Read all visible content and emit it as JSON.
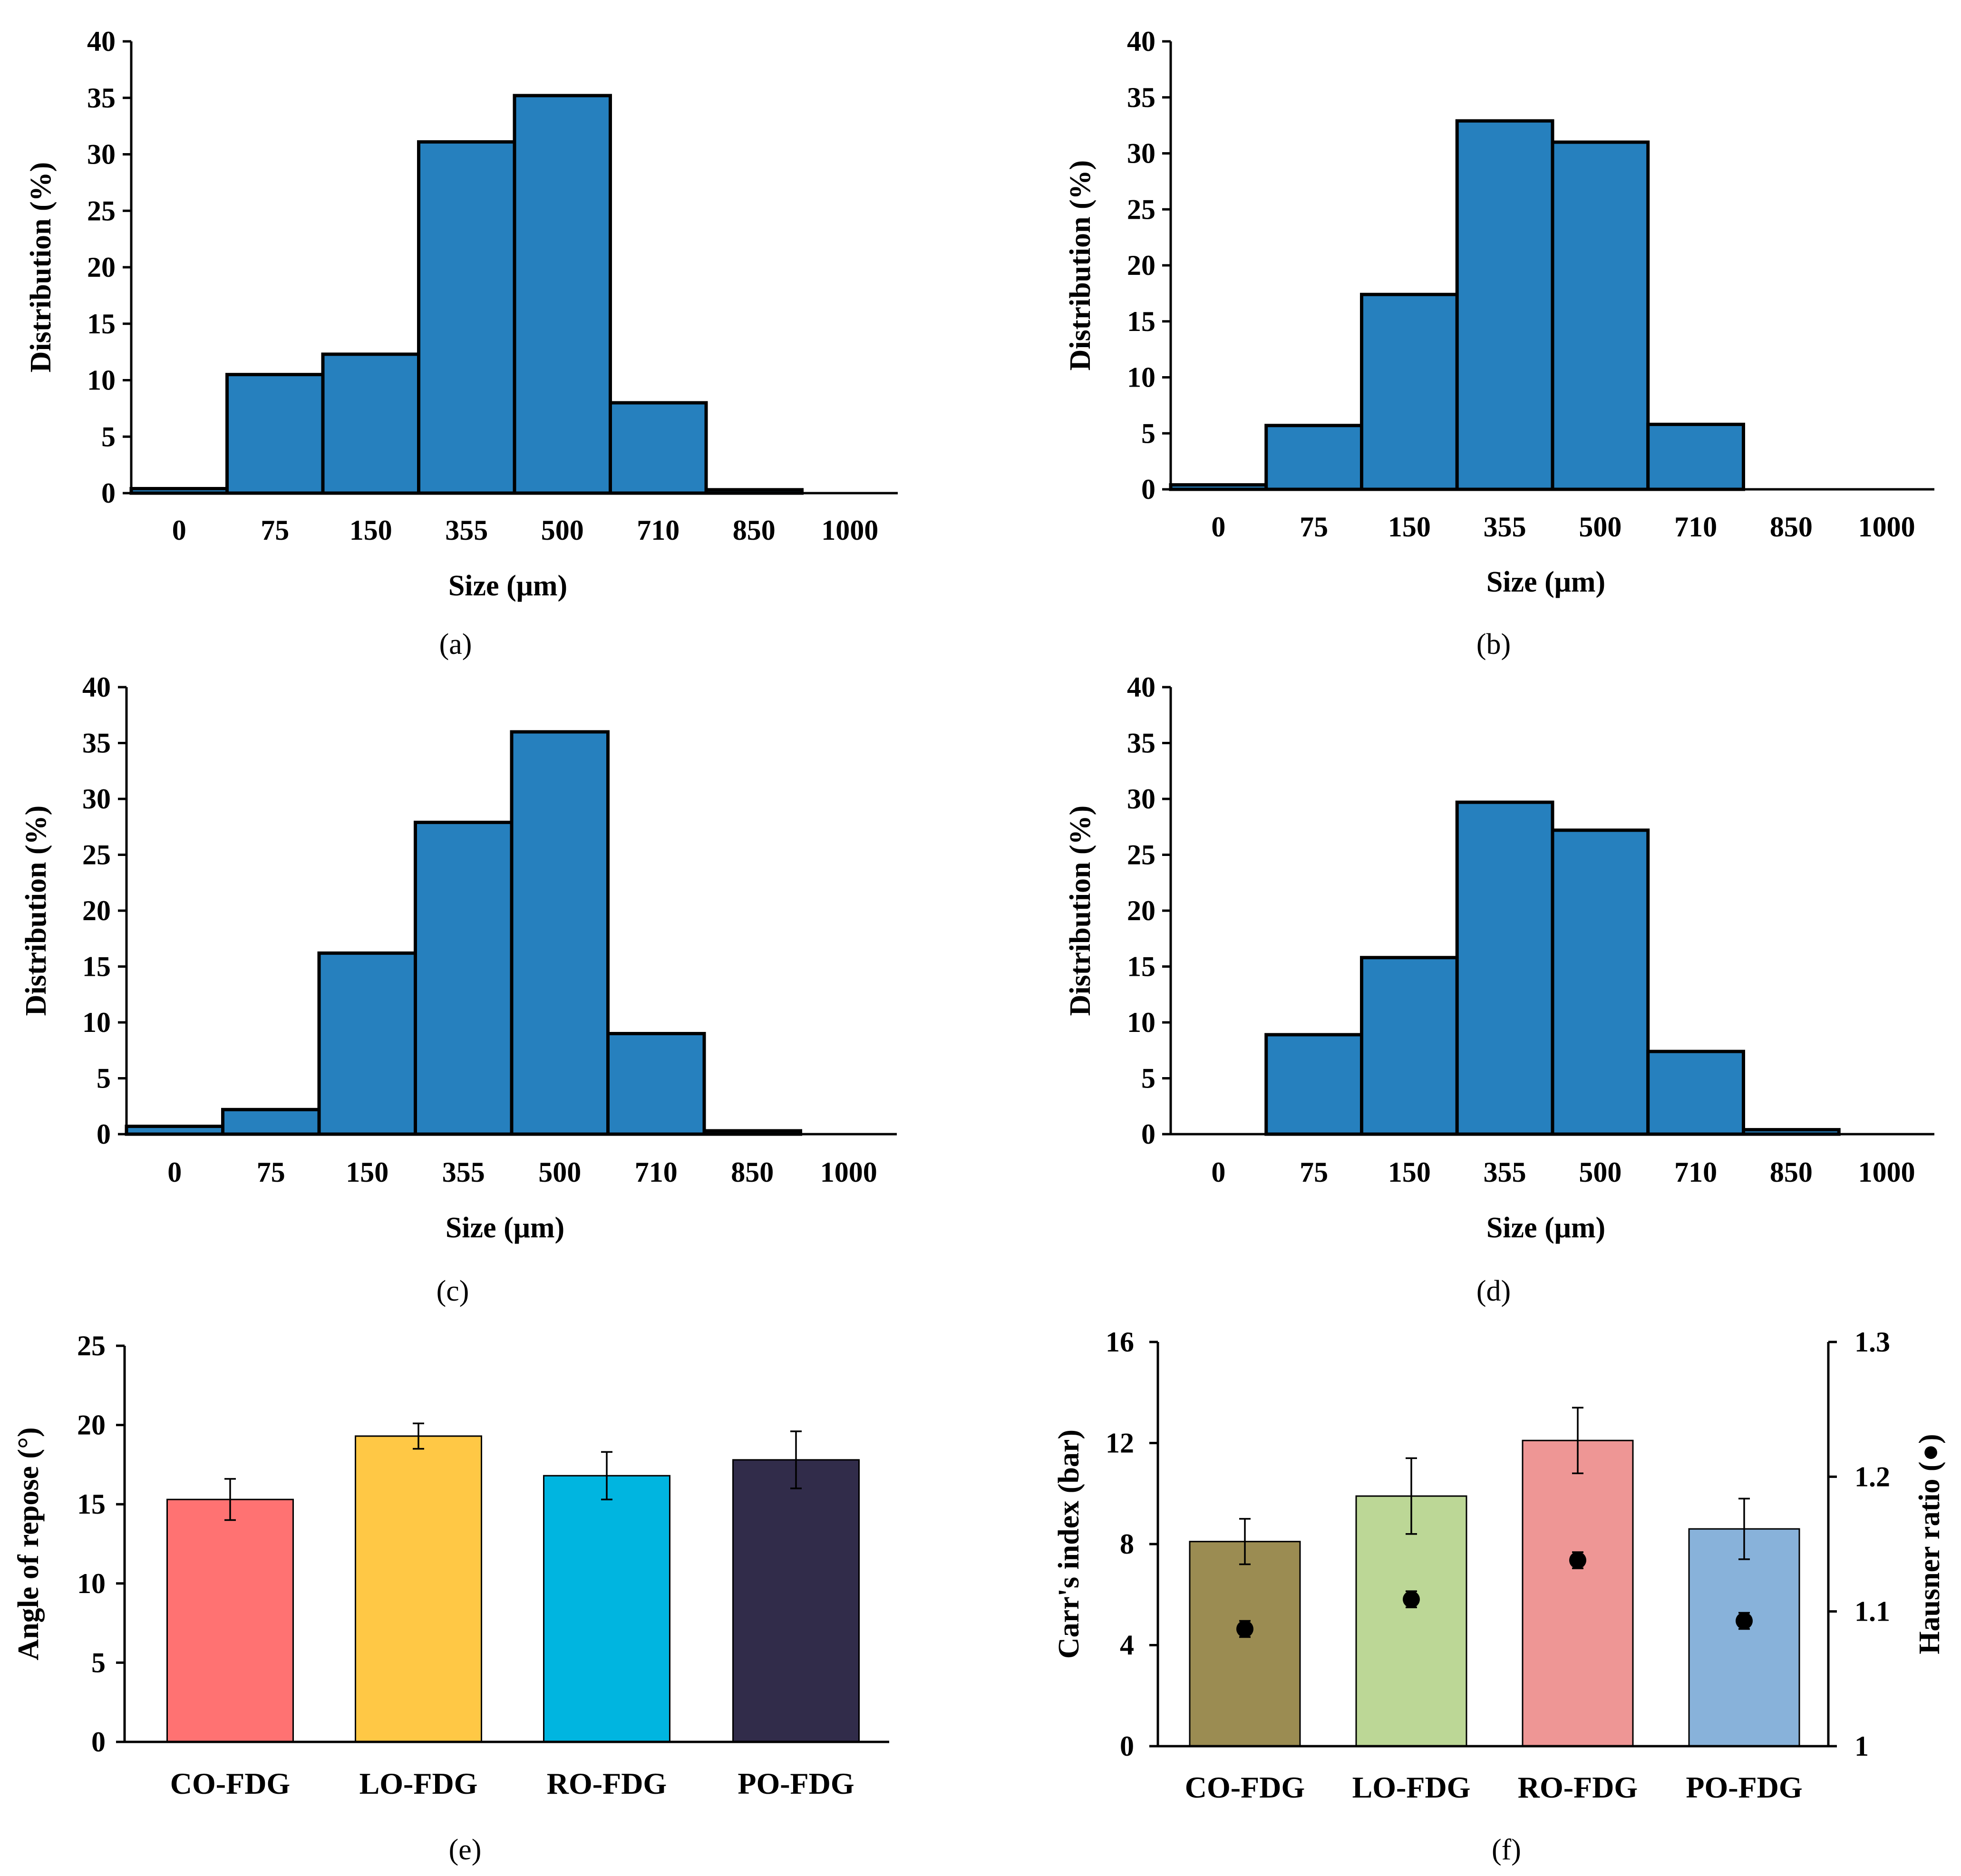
{
  "chart_data": [
    {
      "panel": "a",
      "type": "bar",
      "categories": [
        "0",
        "75",
        "150",
        "355",
        "500",
        "710",
        "850",
        "1000"
      ],
      "values": [
        0.4,
        10.5,
        12.3,
        31.1,
        35.2,
        8.0,
        0.3,
        0
      ],
      "xlabel": "Size (μm)",
      "ylabel": "Distribution (%)",
      "ylim": [
        0,
        40
      ],
      "yticks": [
        "0",
        "5",
        "10",
        "15",
        "20",
        "25",
        "30",
        "35",
        "40"
      ],
      "label": "(a)",
      "color": "#2680BE"
    },
    {
      "panel": "b",
      "type": "bar",
      "categories": [
        "0",
        "75",
        "150",
        "355",
        "500",
        "710",
        "850",
        "1000"
      ],
      "values": [
        0.4,
        5.7,
        17.4,
        32.9,
        31.0,
        5.8,
        0,
        0
      ],
      "xlabel": "Size (μm)",
      "ylabel": "Distribution (%)",
      "ylim": [
        0,
        40
      ],
      "yticks": [
        "0",
        "5",
        "10",
        "15",
        "20",
        "25",
        "30",
        "35",
        "40"
      ],
      "label": "(b)",
      "color": "#2680BE"
    },
    {
      "panel": "c",
      "type": "bar",
      "categories": [
        "0",
        "75",
        "150",
        "355",
        "500",
        "710",
        "850",
        "1000"
      ],
      "values": [
        0.7,
        2.2,
        16.2,
        27.9,
        36.0,
        9.0,
        0.3,
        0
      ],
      "xlabel": "Size (μm)",
      "ylabel": "Distribution (%)",
      "ylim": [
        0,
        40
      ],
      "yticks": [
        "0",
        "5",
        "10",
        "15",
        "20",
        "25",
        "30",
        "35",
        "40"
      ],
      "label": "(c)",
      "color": "#2680BE"
    },
    {
      "panel": "d",
      "type": "bar",
      "categories": [
        "0",
        "75",
        "150",
        "355",
        "500",
        "710",
        "850",
        "1000"
      ],
      "values": [
        0,
        8.9,
        15.8,
        29.7,
        27.2,
        7.4,
        0.4,
        0
      ],
      "xlabel": "Size (μm)",
      "ylabel": "Distribution (%)",
      "ylim": [
        0,
        40
      ],
      "yticks": [
        "0",
        "5",
        "10",
        "15",
        "20",
        "25",
        "30",
        "35",
        "40"
      ],
      "label": "(d)",
      "color": "#2680BE"
    },
    {
      "panel": "e",
      "type": "bar",
      "categories": [
        "CO-FDG",
        "LO-FDG",
        "RO-FDG",
        "PO-FDG"
      ],
      "values": [
        15.3,
        19.3,
        16.8,
        17.8
      ],
      "errors": [
        1.3,
        0.8,
        1.5,
        1.8
      ],
      "colors": [
        "#FF7272",
        "#FFC845",
        "#00B5E0",
        "#312C4A"
      ],
      "ylabel": "Angle of repose (°)",
      "ylim": [
        0,
        25
      ],
      "yticks": [
        "0",
        "5",
        "10",
        "15",
        "20",
        "25"
      ],
      "label": "(e)"
    },
    {
      "panel": "f",
      "type": "bar",
      "categories": [
        "CO-FDG",
        "LO-FDG",
        "RO-FDG",
        "PO-FDG"
      ],
      "values": [
        8.1,
        9.9,
        12.1,
        8.6
      ],
      "errors": [
        0.9,
        1.5,
        1.3,
        1.2
      ],
      "colors": [
        "#9B8C52",
        "#BCD796",
        "#EE9695",
        "#88B2DA"
      ],
      "ylabel": "Carr's index (bar)",
      "ylim": [
        0,
        16
      ],
      "yticks": [
        "0",
        "4",
        "8",
        "12",
        "16"
      ],
      "secondary": {
        "ylabel": "Hausner ratio (●)",
        "ylim": [
          1,
          1.3
        ],
        "yticks": [
          "1",
          "1.1",
          "1.2",
          "1.3"
        ],
        "values": [
          1.087,
          1.109,
          1.138,
          1.093
        ],
        "errors": [
          0.006,
          0.006,
          0.006,
          0.006
        ]
      },
      "label": "(f)"
    }
  ]
}
